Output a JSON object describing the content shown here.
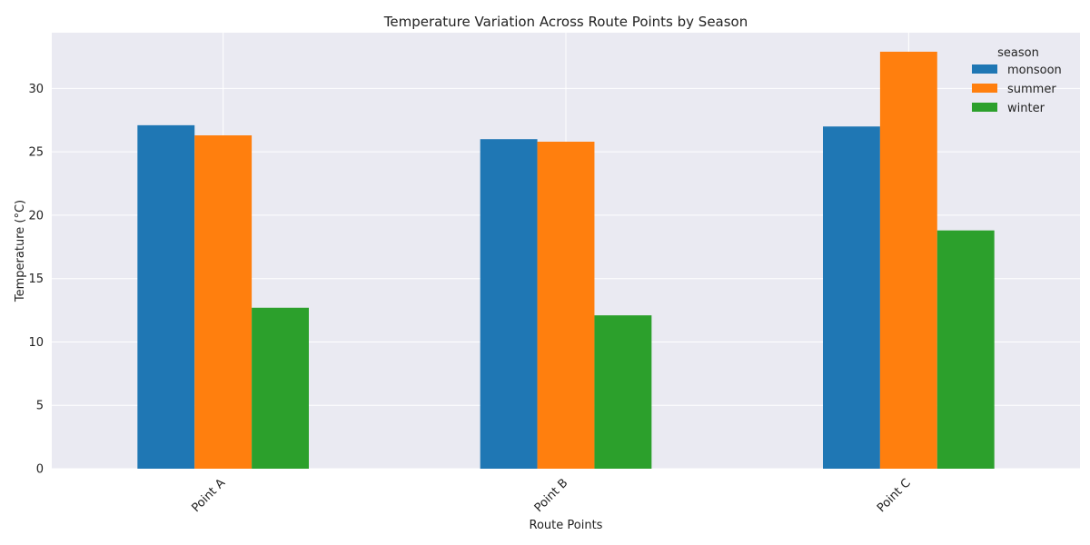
{
  "chart_data": {
    "type": "bar",
    "title": "Temperature Variation Across Route Points by Season",
    "xlabel": "Route Points",
    "ylabel": "Temperature (°C)",
    "categories": [
      "Point A",
      "Point B",
      "Point C"
    ],
    "series": [
      {
        "name": "monsoon",
        "values": [
          27.1,
          26.0,
          27.0
        ]
      },
      {
        "name": "summer",
        "values": [
          26.3,
          25.8,
          32.9
        ]
      },
      {
        "name": "winter",
        "values": [
          12.7,
          12.1,
          18.8
        ]
      }
    ],
    "ylim": [
      0,
      34.4
    ],
    "yticks": [
      0,
      5,
      10,
      15,
      20,
      25,
      30
    ],
    "grid": true,
    "legend": {
      "title": "season",
      "placement": "top-right"
    },
    "colors": {
      "background": "#eaeaf2",
      "grid": "#ffffff",
      "series": [
        "#1f77b4",
        "#ff7f0e",
        "#2ca02c"
      ]
    }
  }
}
